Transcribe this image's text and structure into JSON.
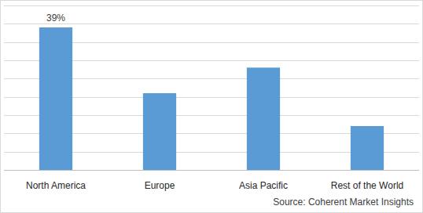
{
  "chart_data": {
    "type": "bar",
    "categories": [
      "North America",
      "Europe",
      "Asia Pacific",
      "Rest of the World"
    ],
    "values": [
      39,
      21,
      28,
      12
    ],
    "value_labels": [
      "39%",
      null,
      null,
      null
    ],
    "data_labels": true,
    "color": "#5b9bd5",
    "ylim": [
      0,
      45
    ],
    "yticks": [
      0,
      5,
      10,
      15,
      20,
      25,
      30,
      35,
      40,
      45
    ],
    "grid": true,
    "tick_labels": "x",
    "source": "Source: Coherent Market Insights"
  }
}
